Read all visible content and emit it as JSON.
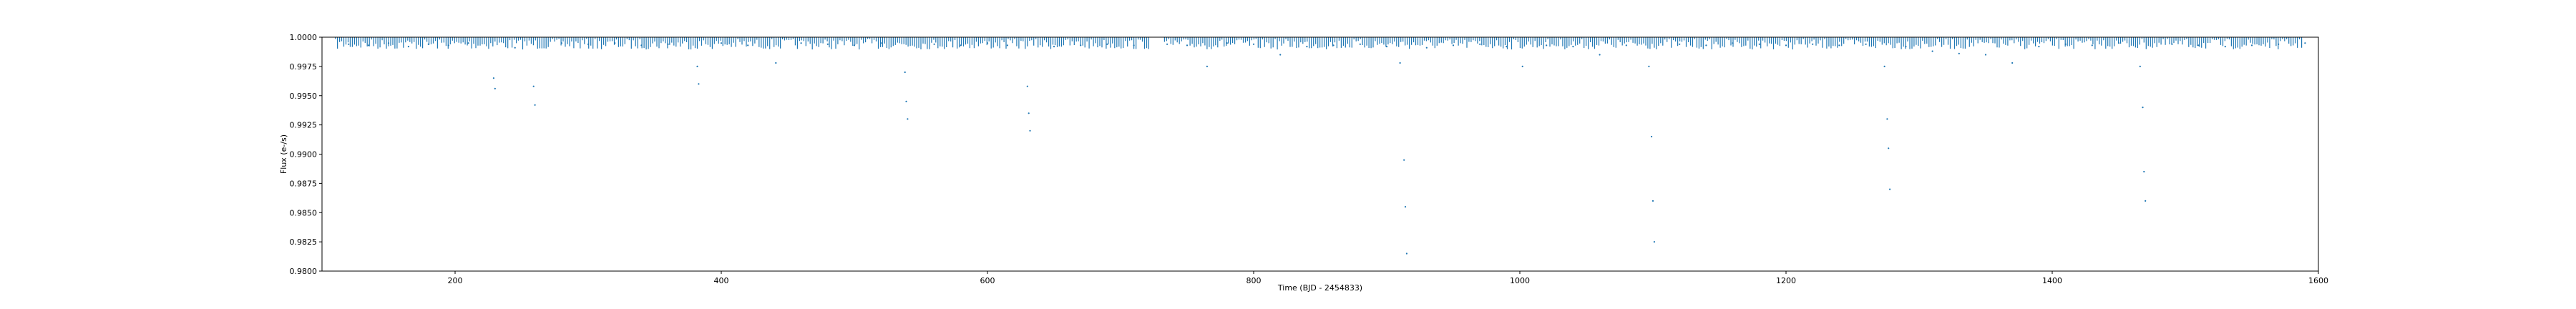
{
  "chart_data": {
    "type": "scatter",
    "title": "",
    "xlabel": "Time (BJD - 2454833)",
    "ylabel": "Flux (e-/s)",
    "xlim": [
      100,
      1600
    ],
    "ylim": [
      0.98,
      1.0
    ],
    "xticks": [
      200,
      400,
      600,
      800,
      1000,
      1200,
      1400,
      1600
    ],
    "xtick_labels": [
      "200",
      "400",
      "600",
      "800",
      "1000",
      "1200",
      "1400",
      "1600"
    ],
    "yticks": [
      0.98,
      0.9825,
      0.985,
      0.9875,
      0.99,
      0.9925,
      0.995,
      0.9975,
      1.0
    ],
    "ytick_labels": [
      "0.9800",
      "0.9825",
      "0.9850",
      "0.9875",
      "0.9900",
      "0.9925",
      "0.9950",
      "0.9975",
      "1.0000"
    ],
    "grid": false,
    "marker_color": "#1f77b4",
    "series": [
      {
        "values": [
          {
            "x": 120,
            "y": 0.9994
          },
          {
            "x": 135,
            "y": 0.9993
          },
          {
            "x": 150,
            "y": 0.9995
          },
          {
            "x": 165,
            "y": 0.9992
          },
          {
            "x": 180,
            "y": 0.9994
          },
          {
            "x": 195,
            "y": 0.9993
          },
          {
            "x": 210,
            "y": 0.9995
          },
          {
            "x": 229,
            "y": 0.9965
          },
          {
            "x": 230,
            "y": 0.9956
          },
          {
            "x": 245,
            "y": 0.9991
          },
          {
            "x": 259,
            "y": 0.9958
          },
          {
            "x": 260,
            "y": 0.9942
          },
          {
            "x": 280,
            "y": 0.9995
          },
          {
            "x": 300,
            "y": 0.9994
          },
          {
            "x": 320,
            "y": 0.9995
          },
          {
            "x": 340,
            "y": 0.9993
          },
          {
            "x": 360,
            "y": 0.9994
          },
          {
            "x": 382,
            "y": 0.9975
          },
          {
            "x": 383,
            "y": 0.996
          },
          {
            "x": 400,
            "y": 0.9995
          },
          {
            "x": 420,
            "y": 0.9993
          },
          {
            "x": 441,
            "y": 0.9978
          },
          {
            "x": 460,
            "y": 0.9995
          },
          {
            "x": 480,
            "y": 0.9994
          },
          {
            "x": 500,
            "y": 0.9993
          },
          {
            "x": 520,
            "y": 0.9995
          },
          {
            "x": 538,
            "y": 0.997
          },
          {
            "x": 539,
            "y": 0.9945
          },
          {
            "x": 540,
            "y": 0.993
          },
          {
            "x": 560,
            "y": 0.9994
          },
          {
            "x": 580,
            "y": 0.9993
          },
          {
            "x": 600,
            "y": 0.9995
          },
          {
            "x": 615,
            "y": 0.9993
          },
          {
            "x": 630,
            "y": 0.9958
          },
          {
            "x": 631,
            "y": 0.9935
          },
          {
            "x": 632,
            "y": 0.992
          },
          {
            "x": 650,
            "y": 0.9992
          },
          {
            "x": 670,
            "y": 0.9993
          },
          {
            "x": 690,
            "y": 0.9994
          },
          {
            "x": 710,
            "y": 0.9993
          },
          {
            "x": 735,
            "y": 0.9994
          },
          {
            "x": 750,
            "y": 0.9993
          },
          {
            "x": 765,
            "y": 0.9975
          },
          {
            "x": 780,
            "y": 0.9995
          },
          {
            "x": 800,
            "y": 0.9994
          },
          {
            "x": 820,
            "y": 0.9985
          },
          {
            "x": 840,
            "y": 0.9992
          },
          {
            "x": 860,
            "y": 0.9993
          },
          {
            "x": 880,
            "y": 0.9994
          },
          {
            "x": 900,
            "y": 0.9992
          },
          {
            "x": 910,
            "y": 0.9978
          },
          {
            "x": 913,
            "y": 0.9895
          },
          {
            "x": 914,
            "y": 0.9855
          },
          {
            "x": 915,
            "y": 0.9815
          },
          {
            "x": 930,
            "y": 0.9991
          },
          {
            "x": 950,
            "y": 0.9993
          },
          {
            "x": 970,
            "y": 0.9994
          },
          {
            "x": 990,
            "y": 0.9992
          },
          {
            "x": 1002,
            "y": 0.9975
          },
          {
            "x": 1020,
            "y": 0.9993
          },
          {
            "x": 1040,
            "y": 0.9992
          },
          {
            "x": 1060,
            "y": 0.9985
          },
          {
            "x": 1080,
            "y": 0.9993
          },
          {
            "x": 1097,
            "y": 0.9975
          },
          {
            "x": 1099,
            "y": 0.9915
          },
          {
            "x": 1100,
            "y": 0.986
          },
          {
            "x": 1101,
            "y": 0.9825
          },
          {
            "x": 1120,
            "y": 0.9994
          },
          {
            "x": 1140,
            "y": 0.9993
          },
          {
            "x": 1160,
            "y": 0.9995
          },
          {
            "x": 1180,
            "y": 0.9994
          },
          {
            "x": 1200,
            "y": 0.9993
          },
          {
            "x": 1220,
            "y": 0.9994
          },
          {
            "x": 1240,
            "y": 0.9993
          },
          {
            "x": 1260,
            "y": 0.9994
          },
          {
            "x": 1274,
            "y": 0.9975
          },
          {
            "x": 1276,
            "y": 0.993
          },
          {
            "x": 1277,
            "y": 0.9905
          },
          {
            "x": 1278,
            "y": 0.987
          },
          {
            "x": 1290,
            "y": 0.9992
          },
          {
            "x": 1310,
            "y": 0.9988
          },
          {
            "x": 1330,
            "y": 0.9986
          },
          {
            "x": 1350,
            "y": 0.9985
          },
          {
            "x": 1370,
            "y": 0.9978
          },
          {
            "x": 1390,
            "y": 0.9992
          },
          {
            "x": 1410,
            "y": 0.9994
          },
          {
            "x": 1430,
            "y": 0.9993
          },
          {
            "x": 1450,
            "y": 0.9995
          },
          {
            "x": 1466,
            "y": 0.9975
          },
          {
            "x": 1468,
            "y": 0.994
          },
          {
            "x": 1469,
            "y": 0.9885
          },
          {
            "x": 1470,
            "y": 0.986
          },
          {
            "x": 1490,
            "y": 0.9994
          },
          {
            "x": 1510,
            "y": 0.9993
          },
          {
            "x": 1530,
            "y": 0.9992
          },
          {
            "x": 1550,
            "y": 0.9993
          },
          {
            "x": 1570,
            "y": 0.9994
          },
          {
            "x": 1590,
            "y": 0.9995
          }
        ]
      }
    ]
  }
}
